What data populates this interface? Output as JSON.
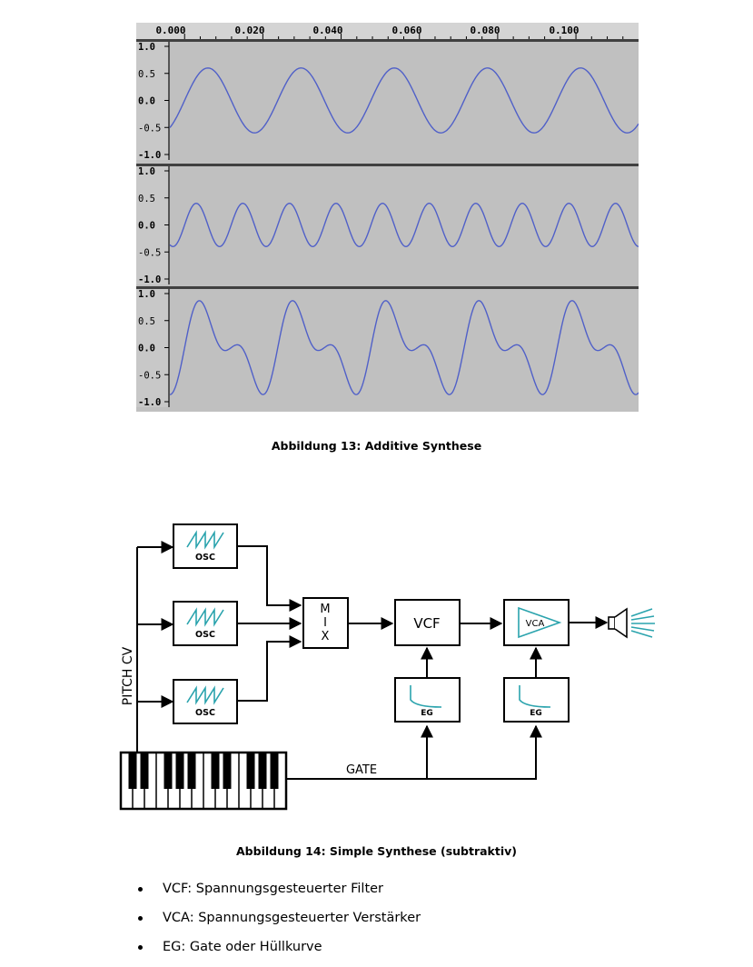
{
  "figure13": {
    "caption": "Abbildung 13: Additive Synthese",
    "ruler_labels": [
      "0.000",
      "0.020",
      "0.040",
      "0.060",
      "0.080",
      "0.100"
    ],
    "tracks": [
      {
        "y_labels": [
          "1.0",
          "0.5",
          "0.0",
          "-0.5",
          "-1.0"
        ]
      },
      {
        "y_labels": [
          "1.0",
          "0.5",
          "0.0",
          "-0.5",
          "-1.0"
        ]
      },
      {
        "y_labels": [
          "1.0",
          "0.5",
          "0.0",
          "-0.5",
          "-1.0"
        ]
      }
    ],
    "colors": {
      "track_bg": "#c0c0c0",
      "waveform": "#5060c8",
      "ruler_bg": "#d4d4d4"
    }
  },
  "chart_data": [
    {
      "type": "line",
      "title": "",
      "xlim": [
        -0.004,
        0.116
      ],
      "ylim": [
        -1.0,
        1.0
      ],
      "series": [
        {
          "function": "0.6*sin(2*pi*f*t)",
          "frequency_hz": 42,
          "amplitude": 0.6
        }
      ]
    },
    {
      "type": "line",
      "title": "",
      "xlim": [
        -0.004,
        0.116
      ],
      "ylim": [
        -1.0,
        1.0
      ],
      "series": [
        {
          "function": "0.4*sin(2*pi*f*t)",
          "frequency_hz": 84,
          "amplitude": 0.4
        }
      ]
    },
    {
      "type": "line",
      "title": "",
      "xlim": [
        -0.004,
        0.116
      ],
      "ylim": [
        -1.0,
        1.0
      ],
      "series": [
        {
          "function": "0.6*sin(2*pi*f*t) + 0.4*sin(2*pi*2f*t)",
          "frequency_hz": 42,
          "amplitude": 0.92
        }
      ]
    }
  ],
  "figure14": {
    "caption": "Abbildung 14: Simple Synthese (subtraktiv)",
    "pitch_cv_label": "PITCH CV",
    "osc_label": "OSC",
    "mix_letters": [
      "M",
      "I",
      "X"
    ],
    "vcf_label": "VCF",
    "vca_label": "VCA",
    "eg_label": "EG",
    "gate_label": "GATE",
    "colors": {
      "accent": "#2aa3ad",
      "line": "#000000"
    }
  },
  "bullets": [
    "VCF: Spannungsgesteuerter Filter",
    "VCA: Spannungsgesteuerter Verstärker",
    "EG: Gate oder Hüllkurve"
  ]
}
